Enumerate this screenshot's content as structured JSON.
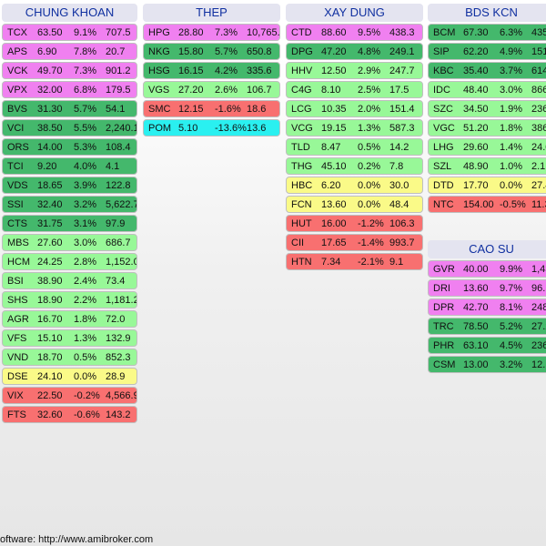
{
  "colors": {
    "magenta": "#f080f0",
    "dark_green": "#44b86c",
    "light_green": "#98f898",
    "yellow": "#fafa88",
    "red": "#f87070",
    "cyan": "#2af0f0"
  },
  "groups": [
    {
      "title": "CHUNG KHOAN",
      "rows": [
        {
          "sym": "TCX",
          "price": "63.50",
          "pct": "9.1%",
          "vol": "707.5",
          "color": "magenta"
        },
        {
          "sym": "APS",
          "price": "6.90",
          "pct": "7.8%",
          "vol": "20.7",
          "color": "magenta"
        },
        {
          "sym": "VCK",
          "price": "49.70",
          "pct": "7.3%",
          "vol": "901.2",
          "color": "magenta"
        },
        {
          "sym": "VPX",
          "price": "32.00",
          "pct": "6.8%",
          "vol": "179.5",
          "color": "magenta"
        },
        {
          "sym": "BVS",
          "price": "31.30",
          "pct": "5.7%",
          "vol": "54.1",
          "color": "dark_green"
        },
        {
          "sym": "VCI",
          "price": "38.50",
          "pct": "5.5%",
          "vol": "2,240.1",
          "color": "dark_green"
        },
        {
          "sym": "ORS",
          "price": "14.00",
          "pct": "5.3%",
          "vol": "108.4",
          "color": "dark_green"
        },
        {
          "sym": "TCI",
          "price": "9.20",
          "pct": "4.0%",
          "vol": "4.1",
          "color": "dark_green"
        },
        {
          "sym": "VDS",
          "price": "18.65",
          "pct": "3.9%",
          "vol": "122.8",
          "color": "dark_green"
        },
        {
          "sym": "SSI",
          "price": "32.40",
          "pct": "3.2%",
          "vol": "5,622.7",
          "color": "dark_green"
        },
        {
          "sym": "CTS",
          "price": "31.75",
          "pct": "3.1%",
          "vol": "97.9",
          "color": "dark_green"
        },
        {
          "sym": "MBS",
          "price": "27.60",
          "pct": "3.0%",
          "vol": "686.7",
          "color": "light_green"
        },
        {
          "sym": "HCM",
          "price": "24.25",
          "pct": "2.8%",
          "vol": "1,152.0",
          "color": "light_green"
        },
        {
          "sym": "BSI",
          "price": "38.90",
          "pct": "2.4%",
          "vol": "73.4",
          "color": "light_green"
        },
        {
          "sym": "SHS",
          "price": "18.90",
          "pct": "2.2%",
          "vol": "1,181.2",
          "color": "light_green"
        },
        {
          "sym": "AGR",
          "price": "16.70",
          "pct": "1.8%",
          "vol": "72.0",
          "color": "light_green"
        },
        {
          "sym": "VFS",
          "price": "15.10",
          "pct": "1.3%",
          "vol": "132.9",
          "color": "light_green"
        },
        {
          "sym": "VND",
          "price": "18.70",
          "pct": "0.5%",
          "vol": "852.3",
          "color": "light_green"
        },
        {
          "sym": "DSE",
          "price": "24.10",
          "pct": "0.0%",
          "vol": "28.9",
          "color": "yellow"
        },
        {
          "sym": "VIX",
          "price": "22.50",
          "pct": "-0.2%",
          "vol": "4,566.9",
          "color": "red"
        },
        {
          "sym": "FTS",
          "price": "32.60",
          "pct": "-0.6%",
          "vol": "143.2",
          "color": "red"
        }
      ]
    },
    {
      "title": "THEP",
      "rows": [
        {
          "sym": "HPG",
          "price": "28.80",
          "pct": "7.3%",
          "vol": "10,765.4",
          "color": "magenta"
        },
        {
          "sym": "NKG",
          "price": "15.80",
          "pct": "5.7%",
          "vol": "650.8",
          "color": "dark_green"
        },
        {
          "sym": "HSG",
          "price": "16.15",
          "pct": "4.2%",
          "vol": "335.6",
          "color": "dark_green"
        },
        {
          "sym": "VGS",
          "price": "27.20",
          "pct": "2.6%",
          "vol": "106.7",
          "color": "light_green"
        },
        {
          "sym": "SMC",
          "price": "12.15",
          "pct": "-1.6%",
          "vol": "18.6",
          "color": "red"
        },
        {
          "sym": "POM",
          "price": "5.10",
          "pct": "-13.6%",
          "vol": "13.6",
          "color": "cyan"
        }
      ]
    },
    {
      "title": "XAY DUNG",
      "rows": [
        {
          "sym": "CTD",
          "price": "88.60",
          "pct": "9.5%",
          "vol": "438.3",
          "color": "magenta"
        },
        {
          "sym": "DPG",
          "price": "47.20",
          "pct": "4.8%",
          "vol": "249.1",
          "color": "dark_green"
        },
        {
          "sym": "HHV",
          "price": "12.50",
          "pct": "2.9%",
          "vol": "247.7",
          "color": "light_green"
        },
        {
          "sym": "C4G",
          "price": "8.10",
          "pct": "2.5%",
          "vol": "17.5",
          "color": "light_green"
        },
        {
          "sym": "LCG",
          "price": "10.35",
          "pct": "2.0%",
          "vol": "151.4",
          "color": "light_green"
        },
        {
          "sym": "VCG",
          "price": "19.15",
          "pct": "1.3%",
          "vol": "587.3",
          "color": "light_green"
        },
        {
          "sym": "TLD",
          "price": "8.47",
          "pct": "0.5%",
          "vol": "14.2",
          "color": "light_green"
        },
        {
          "sym": "THG",
          "price": "45.10",
          "pct": "0.2%",
          "vol": "7.8",
          "color": "light_green"
        },
        {
          "sym": "HBC",
          "price": "6.20",
          "pct": "0.0%",
          "vol": "30.0",
          "color": "yellow"
        },
        {
          "sym": "FCN",
          "price": "13.60",
          "pct": "0.0%",
          "vol": "48.4",
          "color": "yellow"
        },
        {
          "sym": "HUT",
          "price": "16.00",
          "pct": "-1.2%",
          "vol": "106.3",
          "color": "red"
        },
        {
          "sym": "CII",
          "price": "17.65",
          "pct": "-1.4%",
          "vol": "993.7",
          "color": "red"
        },
        {
          "sym": "HTN",
          "price": "7.34",
          "pct": "-2.1%",
          "vol": "9.1",
          "color": "red"
        }
      ]
    },
    {
      "title": "BDS KCN",
      "rows": [
        {
          "sym": "BCM",
          "price": "67.30",
          "pct": "6.3%",
          "vol": "435",
          "color": "dark_green"
        },
        {
          "sym": "SIP",
          "price": "62.20",
          "pct": "4.9%",
          "vol": "151",
          "color": "dark_green"
        },
        {
          "sym": "KBC",
          "price": "35.40",
          "pct": "3.7%",
          "vol": "614",
          "color": "dark_green"
        },
        {
          "sym": "IDC",
          "price": "48.40",
          "pct": "3.0%",
          "vol": "866",
          "color": "light_green"
        },
        {
          "sym": "SZC",
          "price": "34.50",
          "pct": "1.9%",
          "vol": "236",
          "color": "light_green"
        },
        {
          "sym": "VGC",
          "price": "51.20",
          "pct": "1.8%",
          "vol": "386",
          "color": "light_green"
        },
        {
          "sym": "LHG",
          "price": "29.60",
          "pct": "1.4%",
          "vol": "24.0",
          "color": "light_green"
        },
        {
          "sym": "SZL",
          "price": "48.90",
          "pct": "1.0%",
          "vol": "2.1",
          "color": "light_green"
        },
        {
          "sym": "DTD",
          "price": "17.70",
          "pct": "0.0%",
          "vol": "27.4",
          "color": "yellow"
        },
        {
          "sym": "NTC",
          "price": "154.00",
          "pct": "-0.5%",
          "vol": "11.3",
          "color": "red"
        }
      ]
    },
    {
      "title": "CAO SU",
      "rows": [
        {
          "sym": "GVR",
          "price": "40.00",
          "pct": "9.9%",
          "vol": "1,43",
          "color": "magenta"
        },
        {
          "sym": "DRI",
          "price": "13.60",
          "pct": "9.7%",
          "vol": "96.1",
          "color": "magenta"
        },
        {
          "sym": "DPR",
          "price": "42.70",
          "pct": "8.1%",
          "vol": "248",
          "color": "magenta"
        },
        {
          "sym": "TRC",
          "price": "78.50",
          "pct": "5.2%",
          "vol": "27.2",
          "color": "dark_green"
        },
        {
          "sym": "PHR",
          "price": "63.10",
          "pct": "4.5%",
          "vol": "236",
          "color": "dark_green"
        },
        {
          "sym": "CSM",
          "price": "13.00",
          "pct": "3.2%",
          "vol": "12.1",
          "color": "dark_green"
        }
      ]
    }
  ],
  "footer": "oftware: http://www.amibroker.com"
}
